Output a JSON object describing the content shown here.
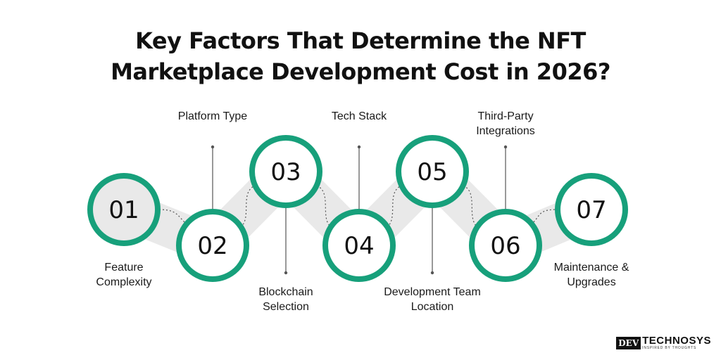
{
  "title": {
    "line1": "Key Factors That Determine the NFT",
    "line2": "Marketplace Development Cost in 2026?"
  },
  "colors": {
    "accent": "#17a07b",
    "ring_fill": "#ffffff",
    "first_fill": "#e9e9e9",
    "band": "#e9e9e9",
    "connector": "#555555"
  },
  "factors": [
    {
      "number": "01",
      "lines": [
        "Feature",
        "Complexity"
      ]
    },
    {
      "number": "02",
      "lines": [
        "Platform Type"
      ]
    },
    {
      "number": "03",
      "lines": [
        "Blockchain",
        "Selection"
      ]
    },
    {
      "number": "04",
      "lines": [
        "Tech Stack"
      ]
    },
    {
      "number": "05",
      "lines": [
        "Development Team",
        "Location"
      ]
    },
    {
      "number": "06",
      "lines": [
        "Third-Party",
        "Integrations"
      ]
    },
    {
      "number": "07",
      "lines": [
        "Maintenance &",
        "Upgrades"
      ]
    }
  ],
  "logo": {
    "box": "DEV",
    "word": "TECHNOSYS",
    "tagline": "INSPIRED BY THOUGHTS"
  }
}
